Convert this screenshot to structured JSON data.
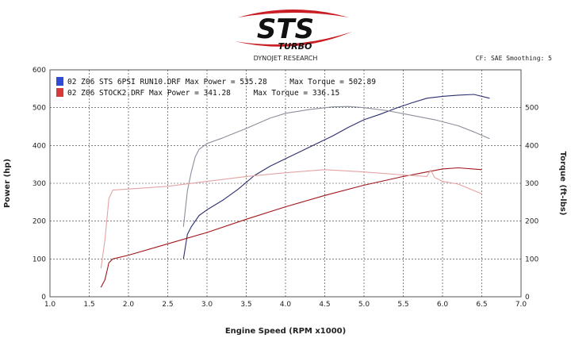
{
  "header": {
    "logo_text": "STS",
    "logo_sub": "TURBO",
    "subtitle": "DYNOJET RESEARCH",
    "settings": "CF: SAE  Smoothing: 5"
  },
  "colors": {
    "run_blue": "#2a2f6e",
    "run_red": "#a0161b",
    "torque_blue": "#8a8f9c",
    "torque_red": "#e3a3a3",
    "grid": "#333333",
    "frame": "#555555"
  },
  "chart_data": {
    "type": "line",
    "xlabel": "Engine Speed (RPM x1000)",
    "ylabel_left": "Power (hp)",
    "ylabel_right": "Torque (ft-lbs)",
    "xlim": [
      1.0,
      7.0
    ],
    "ylim": [
      0,
      600
    ],
    "x_ticks": [
      "1.0",
      "1.5",
      "2.0",
      "2.5",
      "3.0",
      "3.5",
      "4.0",
      "4.5",
      "5.0",
      "5.5",
      "6.0",
      "6.5",
      "7.0"
    ],
    "y_ticks": [
      "0",
      "100",
      "200",
      "300",
      "400",
      "500",
      "600"
    ],
    "y2_ticks": [
      "0",
      "100",
      "200",
      "300",
      "400",
      "500"
    ],
    "legend": [
      {
        "text": "02 Z06 STS 6PSI RUN10.DRF Max Power = 535.28     Max Torque = 502.89",
        "color": "#2e4bd6"
      },
      {
        "text": "02 Z06 STOCK2.DRF Max Power = 341.28     Max Torque = 336.15",
        "color": "#d83a3a"
      }
    ],
    "series": [
      {
        "role": "power",
        "run": "sts",
        "color": "#2a2f6e",
        "points": [
          [
            2.7,
            100
          ],
          [
            2.75,
            165
          ],
          [
            2.8,
            185
          ],
          [
            2.9,
            215
          ],
          [
            3.0,
            230
          ],
          [
            3.2,
            255
          ],
          [
            3.4,
            285
          ],
          [
            3.6,
            320
          ],
          [
            3.8,
            345
          ],
          [
            4.0,
            365
          ],
          [
            4.2,
            385
          ],
          [
            4.4,
            405
          ],
          [
            4.6,
            425
          ],
          [
            4.8,
            448
          ],
          [
            5.0,
            468
          ],
          [
            5.2,
            482
          ],
          [
            5.4,
            498
          ],
          [
            5.6,
            512
          ],
          [
            5.8,
            525
          ],
          [
            6.0,
            530
          ],
          [
            6.2,
            533
          ],
          [
            6.4,
            535
          ],
          [
            6.6,
            525
          ]
        ]
      },
      {
        "role": "torque",
        "run": "sts",
        "color": "#8a8f9c",
        "points": [
          [
            2.7,
            185
          ],
          [
            2.75,
            280
          ],
          [
            2.8,
            330
          ],
          [
            2.85,
            370
          ],
          [
            2.9,
            390
          ],
          [
            3.0,
            405
          ],
          [
            3.2,
            420
          ],
          [
            3.5,
            445
          ],
          [
            3.8,
            472
          ],
          [
            4.0,
            485
          ],
          [
            4.3,
            495
          ],
          [
            4.6,
            502
          ],
          [
            4.8,
            503
          ],
          [
            5.0,
            500
          ],
          [
            5.3,
            492
          ],
          [
            5.6,
            480
          ],
          [
            5.9,
            468
          ],
          [
            6.2,
            452
          ],
          [
            6.4,
            436
          ],
          [
            6.6,
            418
          ]
        ]
      },
      {
        "role": "power",
        "run": "stock",
        "color": "#a0161b",
        "points": [
          [
            1.65,
            25
          ],
          [
            1.7,
            45
          ],
          [
            1.75,
            90
          ],
          [
            1.8,
            100
          ],
          [
            2.0,
            110
          ],
          [
            2.5,
            140
          ],
          [
            3.0,
            170
          ],
          [
            3.5,
            205
          ],
          [
            4.0,
            238
          ],
          [
            4.5,
            268
          ],
          [
            5.0,
            295
          ],
          [
            5.5,
            318
          ],
          [
            5.8,
            330
          ],
          [
            6.0,
            338
          ],
          [
            6.2,
            341
          ],
          [
            6.5,
            336
          ]
        ]
      },
      {
        "role": "torque",
        "run": "stock",
        "color": "#e3a3a3",
        "points": [
          [
            1.65,
            75
          ],
          [
            1.7,
            150
          ],
          [
            1.75,
            260
          ],
          [
            1.8,
            282
          ],
          [
            2.0,
            285
          ],
          [
            2.5,
            292
          ],
          [
            3.0,
            305
          ],
          [
            3.5,
            318
          ],
          [
            4.0,
            328
          ],
          [
            4.5,
            336
          ],
          [
            5.0,
            330
          ],
          [
            5.5,
            322
          ],
          [
            5.8,
            318
          ],
          [
            5.85,
            335
          ],
          [
            5.9,
            315
          ],
          [
            6.0,
            305
          ],
          [
            6.2,
            298
          ],
          [
            6.5,
            272
          ]
        ]
      }
    ]
  }
}
